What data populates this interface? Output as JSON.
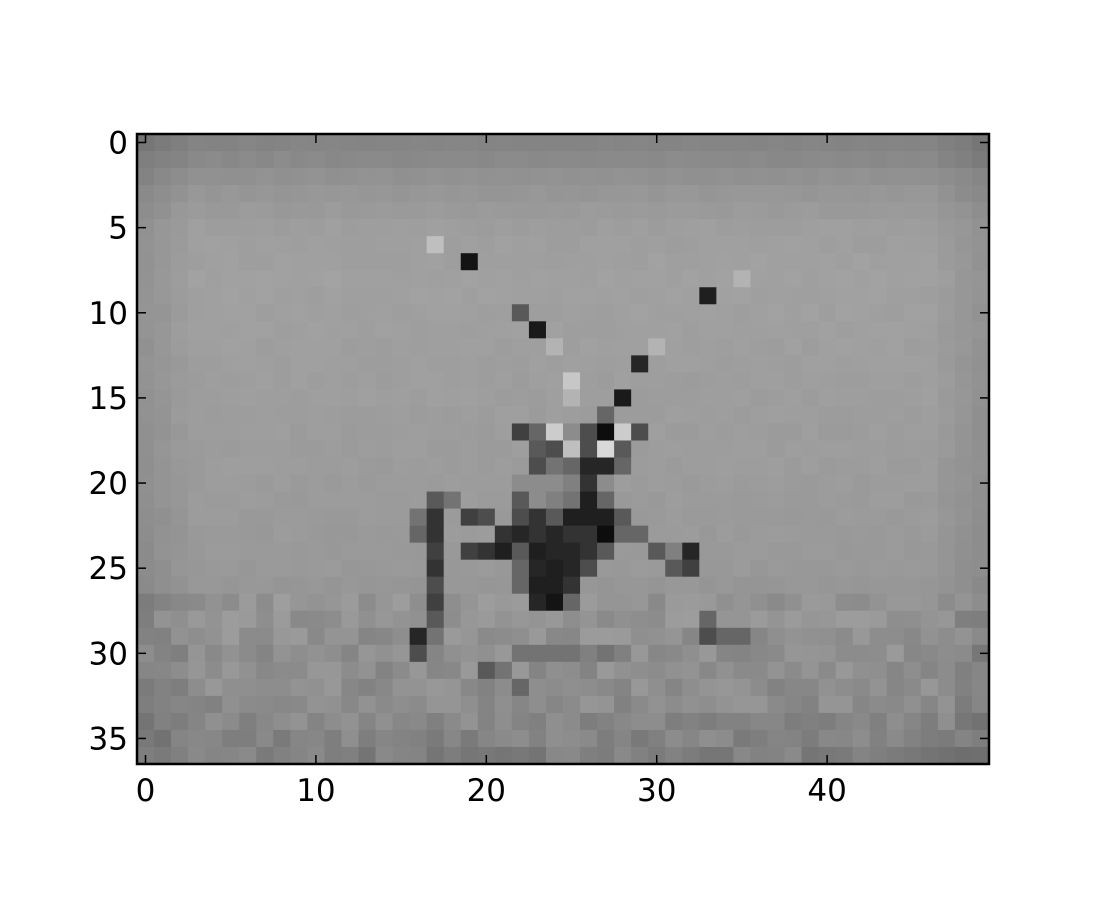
{
  "chart_data": {
    "type": "heatmap",
    "colormap": "gray",
    "interpolation": "nearest",
    "grid": false,
    "xlim": [
      -0.5,
      49.5
    ],
    "ylim": [
      36.5,
      -0.5
    ],
    "rows": 37,
    "cols": 50,
    "xticks": [
      0,
      10,
      20,
      30,
      40
    ],
    "yticks": [
      0,
      5,
      10,
      15,
      20,
      25,
      30,
      35
    ],
    "xtick_labels": [
      "0",
      "10",
      "20",
      "30",
      "40"
    ],
    "ytick_labels": [
      "0",
      "5",
      "10",
      "15",
      "20",
      "25",
      "30",
      "35"
    ],
    "background_gradient": {
      "row_values": [
        {
          "row": 0,
          "value": 0.52
        },
        {
          "row": 1,
          "value": 0.54
        },
        {
          "row": 2,
          "value": 0.57
        },
        {
          "row": 3,
          "value": 0.59
        },
        {
          "row": 5,
          "value": 0.62
        },
        {
          "row": 8,
          "value": 0.63
        },
        {
          "row": 14,
          "value": 0.62
        },
        {
          "row": 20,
          "value": 0.61
        },
        {
          "row": 25,
          "value": 0.6
        },
        {
          "row": 27,
          "value": 0.58
        },
        {
          "row": 30,
          "value": 0.56
        },
        {
          "row": 33,
          "value": 0.55
        },
        {
          "row": 36,
          "value": 0.5
        }
      ],
      "edge_darkening": 0.05
    },
    "highlight_cells": [
      [
        6,
        17,
        0.75
      ],
      [
        7,
        19,
        0.08
      ],
      [
        8,
        35,
        0.7
      ],
      [
        9,
        33,
        0.12
      ],
      [
        10,
        22,
        0.35
      ],
      [
        11,
        23,
        0.1
      ],
      [
        12,
        24,
        0.7
      ],
      [
        12,
        30,
        0.7
      ],
      [
        13,
        29,
        0.15
      ],
      [
        14,
        25,
        0.78
      ],
      [
        15,
        25,
        0.7
      ],
      [
        15,
        28,
        0.1
      ],
      [
        16,
        27,
        0.4
      ],
      [
        17,
        22,
        0.25
      ],
      [
        17,
        23,
        0.4
      ],
      [
        17,
        24,
        0.8
      ],
      [
        17,
        25,
        0.55
      ],
      [
        17,
        26,
        0.3
      ],
      [
        17,
        27,
        0.05
      ],
      [
        17,
        28,
        0.8
      ],
      [
        17,
        29,
        0.3
      ],
      [
        18,
        23,
        0.35
      ],
      [
        18,
        24,
        0.3
      ],
      [
        18,
        25,
        0.75
      ],
      [
        18,
        26,
        0.3
      ],
      [
        18,
        27,
        0.85
      ],
      [
        18,
        28,
        0.35
      ],
      [
        19,
        23,
        0.3
      ],
      [
        19,
        24,
        0.45
      ],
      [
        19,
        25,
        0.4
      ],
      [
        19,
        26,
        0.15
      ],
      [
        19,
        27,
        0.15
      ],
      [
        19,
        28,
        0.4
      ],
      [
        20,
        22,
        0.55
      ],
      [
        20,
        23,
        0.55
      ],
      [
        20,
        24,
        0.55
      ],
      [
        20,
        25,
        0.5
      ],
      [
        20,
        26,
        0.2
      ],
      [
        20,
        27,
        0.55
      ],
      [
        21,
        17,
        0.35
      ],
      [
        21,
        18,
        0.45
      ],
      [
        21,
        22,
        0.35
      ],
      [
        21,
        23,
        0.55
      ],
      [
        21,
        24,
        0.5
      ],
      [
        21,
        25,
        0.45
      ],
      [
        21,
        26,
        0.12
      ],
      [
        21,
        27,
        0.4
      ],
      [
        22,
        16,
        0.45
      ],
      [
        22,
        17,
        0.2
      ],
      [
        22,
        19,
        0.25
      ],
      [
        22,
        20,
        0.3
      ],
      [
        22,
        22,
        0.3
      ],
      [
        22,
        23,
        0.2
      ],
      [
        22,
        24,
        0.35
      ],
      [
        22,
        25,
        0.12
      ],
      [
        22,
        26,
        0.12
      ],
      [
        22,
        27,
        0.12
      ],
      [
        22,
        28,
        0.35
      ],
      [
        23,
        16,
        0.4
      ],
      [
        23,
        17,
        0.2
      ],
      [
        23,
        21,
        0.2
      ],
      [
        23,
        22,
        0.15
      ],
      [
        23,
        23,
        0.2
      ],
      [
        23,
        24,
        0.15
      ],
      [
        23,
        25,
        0.2
      ],
      [
        23,
        26,
        0.2
      ],
      [
        23,
        27,
        0.05
      ],
      [
        23,
        28,
        0.4
      ],
      [
        23,
        29,
        0.4
      ],
      [
        24,
        17,
        0.25
      ],
      [
        24,
        19,
        0.25
      ],
      [
        24,
        20,
        0.2
      ],
      [
        24,
        21,
        0.12
      ],
      [
        24,
        22,
        0.35
      ],
      [
        24,
        23,
        0.12
      ],
      [
        24,
        24,
        0.15
      ],
      [
        24,
        25,
        0.15
      ],
      [
        24,
        26,
        0.2
      ],
      [
        24,
        27,
        0.35
      ],
      [
        24,
        30,
        0.35
      ],
      [
        24,
        31,
        0.5
      ],
      [
        24,
        32,
        0.15
      ],
      [
        25,
        17,
        0.2
      ],
      [
        25,
        22,
        0.4
      ],
      [
        25,
        23,
        0.15
      ],
      [
        25,
        24,
        0.12
      ],
      [
        25,
        25,
        0.15
      ],
      [
        25,
        26,
        0.3
      ],
      [
        25,
        31,
        0.35
      ],
      [
        25,
        32,
        0.25
      ],
      [
        26,
        17,
        0.3
      ],
      [
        26,
        22,
        0.4
      ],
      [
        26,
        23,
        0.12
      ],
      [
        26,
        24,
        0.12
      ],
      [
        26,
        25,
        0.2
      ],
      [
        27,
        17,
        0.25
      ],
      [
        27,
        23,
        0.15
      ],
      [
        27,
        24,
        0.08
      ],
      [
        27,
        25,
        0.4
      ],
      [
        28,
        17,
        0.35
      ],
      [
        28,
        33,
        0.4
      ],
      [
        29,
        16,
        0.15
      ],
      [
        29,
        17,
        0.45
      ],
      [
        29,
        33,
        0.3
      ],
      [
        29,
        34,
        0.4
      ],
      [
        29,
        35,
        0.4
      ],
      [
        30,
        16,
        0.3
      ],
      [
        30,
        22,
        0.45
      ],
      [
        30,
        23,
        0.45
      ],
      [
        30,
        24,
        0.45
      ],
      [
        30,
        25,
        0.45
      ],
      [
        30,
        26,
        0.5
      ],
      [
        30,
        27,
        0.45
      ],
      [
        30,
        28,
        0.5
      ],
      [
        31,
        20,
        0.35
      ],
      [
        31,
        21,
        0.45
      ],
      [
        32,
        22,
        0.4
      ]
    ]
  }
}
